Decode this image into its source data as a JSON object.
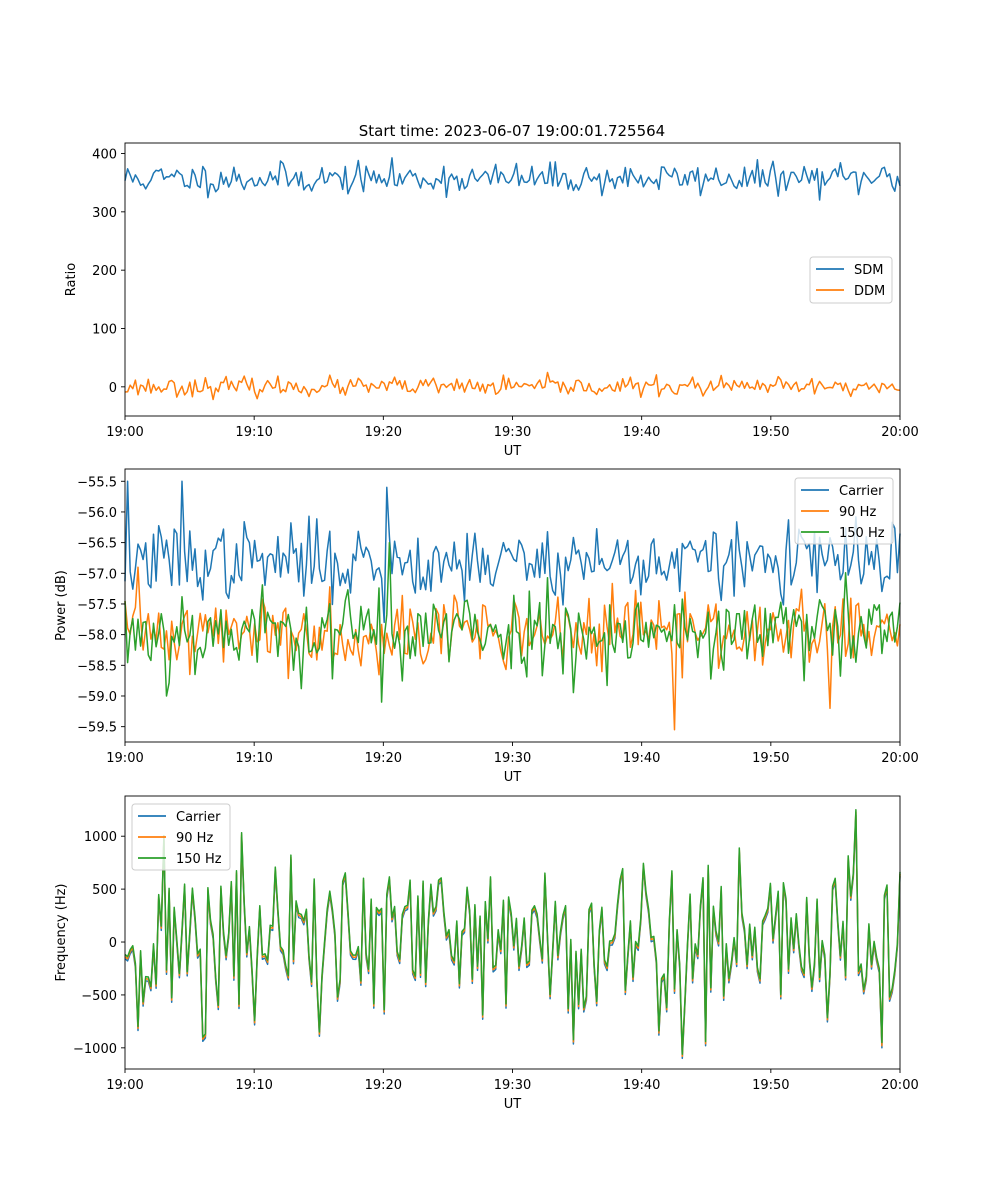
{
  "figure": {
    "title": "Start time: 2023-06-07 19:00:01.725564"
  },
  "colors": {
    "blue": "#1f77b4",
    "orange": "#ff7f0e",
    "green": "#2ca02c"
  },
  "chart_data": [
    {
      "type": "line",
      "title": "Start time: 2023-06-07 19:00:01.725564",
      "xlabel": "UT",
      "ylabel": "Ratio",
      "xlim": [
        "19:00",
        "20:00"
      ],
      "ylim": [
        -50,
        418
      ],
      "x_ticks": [
        "19:00",
        "19:10",
        "19:20",
        "19:30",
        "19:40",
        "19:50",
        "20:00"
      ],
      "y_ticks": [
        0,
        100,
        200,
        300,
        400
      ],
      "y_tick_labels": [
        "0",
        "100",
        "200",
        "300",
        "400"
      ],
      "legend_position": "center-right",
      "grid": false,
      "n_points": 300,
      "series": [
        {
          "name": "SDM",
          "color": "blue",
          "seed": 11,
          "mean": 357,
          "sd": 13,
          "clip": [
            315,
            395
          ],
          "spikes": []
        },
        {
          "name": "DDM",
          "color": "orange",
          "seed": 23,
          "mean": 0,
          "sd": 8,
          "clip": [
            -28,
            25
          ],
          "spikes": []
        }
      ]
    },
    {
      "type": "line",
      "xlabel": "UT",
      "ylabel": "Power (dB)",
      "xlim": [
        "19:00",
        "20:00"
      ],
      "ylim": [
        -59.75,
        -55.3
      ],
      "x_ticks": [
        "19:00",
        "19:10",
        "19:20",
        "19:30",
        "19:40",
        "19:50",
        "20:00"
      ],
      "y_ticks": [
        -55.5,
        -56.0,
        -56.5,
        -57.0,
        -57.5,
        -58.0,
        -58.5,
        -59.0,
        -59.5
      ],
      "y_tick_labels": [
        "−55.5",
        "−56.0",
        "−56.5",
        "−57.0",
        "−57.5",
        "−58.0",
        "−58.5",
        "−59.0",
        "−59.5"
      ],
      "legend_position": "top-right",
      "grid": false,
      "n_points": 300,
      "series": [
        {
          "name": "Carrier",
          "color": "blue",
          "seed": 37,
          "mean": -56.8,
          "sd": 0.3,
          "clip": [
            -57.9,
            -55.5
          ],
          "spikes": [
            [
              1,
              -55.5
            ],
            [
              22,
              -55.5
            ],
            [
              100,
              -57.8
            ],
            [
              101,
              -55.6
            ],
            [
              102,
              -56.4
            ]
          ]
        },
        {
          "name": "90 Hz",
          "color": "orange",
          "seed": 41,
          "mean": -57.95,
          "sd": 0.3,
          "clip": [
            -59.0,
            -56.9
          ],
          "spikes": [
            [
              5,
              -56.9
            ],
            [
              212,
              -59.55
            ],
            [
              272,
              -59.2
            ]
          ]
        },
        {
          "name": "150 Hz",
          "color": "green",
          "seed": 53,
          "mean": -57.95,
          "sd": 0.35,
          "clip": [
            -59.1,
            -56.7
          ],
          "spikes": [
            [
              16,
              -59.0
            ],
            [
              99,
              -59.1
            ],
            [
              102,
              -56.5
            ]
          ]
        }
      ]
    },
    {
      "type": "line",
      "xlabel": "UT",
      "ylabel": "Frequency (Hz)",
      "xlim": [
        "19:00",
        "20:00"
      ],
      "ylim": [
        -1200,
        1380
      ],
      "x_ticks": [
        "19:00",
        "19:10",
        "19:20",
        "19:30",
        "19:40",
        "19:50",
        "20:00"
      ],
      "y_ticks": [
        -1000,
        -500,
        0,
        500,
        1000
      ],
      "y_tick_labels": [
        "−1000",
        "−500",
        "0",
        "500",
        "1000"
      ],
      "legend_position": "top-left",
      "grid": false,
      "n_points": 300,
      "series": [
        {
          "name": "Carrier",
          "color": "blue",
          "seed": 71,
          "mean": -20,
          "sd": 430,
          "clip": [
            -1100,
            1150
          ],
          "spikes": [
            [
              215,
              -1100
            ],
            [
              282,
              1200
            ],
            [
              292,
              -1000
            ]
          ]
        },
        {
          "name": "90 Hz",
          "color": "orange",
          "seed": 71,
          "mean": 0,
          "sd": 430,
          "clip": [
            -1080,
            1180
          ],
          "spikes": [
            [
              215,
              -1080
            ],
            [
              282,
              1230
            ],
            [
              292,
              -980
            ]
          ]
        },
        {
          "name": "150 Hz",
          "color": "green",
          "seed": 71,
          "mean": 20,
          "sd": 430,
          "clip": [
            -1060,
            1200
          ],
          "spikes": [
            [
              215,
              -1060
            ],
            [
              282,
              1250
            ],
            [
              292,
              -950
            ]
          ]
        }
      ]
    }
  ]
}
